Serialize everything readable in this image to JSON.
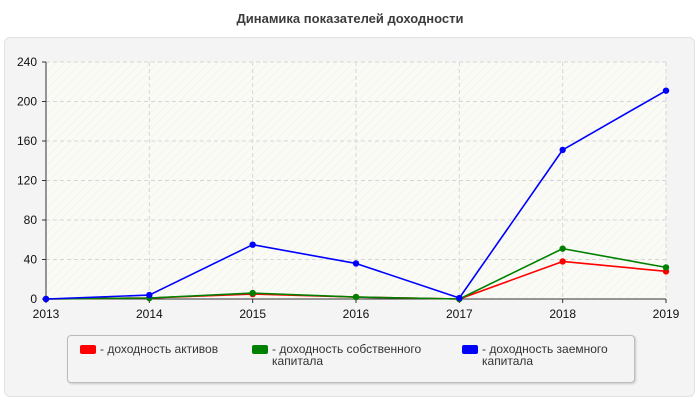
{
  "chart_data": {
    "type": "line",
    "title": "Динамика показателей доходности",
    "xlabel": "",
    "ylabel": "",
    "x": [
      "2013",
      "2014",
      "2015",
      "2016",
      "2017",
      "2018",
      "2019"
    ],
    "ylim": [
      0,
      240
    ],
    "yticks": [
      "0",
      "40",
      "80",
      "120",
      "160",
      "200",
      "240"
    ],
    "grid": true,
    "legend_position": "bottom",
    "series": [
      {
        "name": "- доходность активов",
        "color": "#ff0000",
        "values": [
          0,
          1,
          5,
          2,
          0,
          38,
          28
        ]
      },
      {
        "name": "- доходность собственного капитала",
        "color": "#008000",
        "values": [
          0,
          1,
          6,
          2,
          0,
          51,
          32
        ]
      },
      {
        "name": "- доходность заемного капитала",
        "color": "#0000ff",
        "values": [
          0,
          4,
          55,
          36,
          1,
          151,
          211
        ]
      }
    ]
  }
}
